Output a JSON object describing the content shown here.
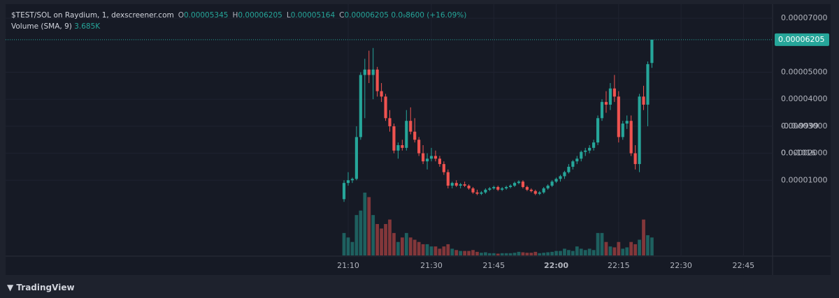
{
  "chart_data": {
    "type": "candlestick",
    "title": "$TEST/SOL on Raydium, 1, dexscreener.com",
    "legend_ohlc": [
      {
        "key": "O",
        "value": "0.00005345"
      },
      {
        "key": "H",
        "value": "0.00006205"
      },
      {
        "key": "L",
        "value": "0.00005164"
      },
      {
        "key": "C",
        "value": "0.00006205"
      }
    ],
    "legend_change": "0.0₉8600 (+16.09%)",
    "volume_title": "Volume (SMA, 9)",
    "volume_sma": "3.685K",
    "up_color": "#26a69a",
    "down_color": "#ef5350",
    "grid": true,
    "x": [
      "21:09",
      "21:10",
      "21:11",
      "21:12",
      "21:13",
      "21:14",
      "21:15",
      "21:16",
      "21:17",
      "21:18",
      "21:19",
      "21:20",
      "21:21",
      "21:22",
      "21:23",
      "21:24",
      "21:25",
      "21:26",
      "21:27",
      "21:28",
      "21:29",
      "21:30",
      "21:31",
      "21:32",
      "21:33",
      "21:34",
      "21:35",
      "21:36",
      "21:37",
      "21:38",
      "21:39",
      "21:40",
      "21:41",
      "21:42",
      "21:43",
      "21:44",
      "21:45",
      "21:46",
      "21:47",
      "21:48",
      "21:49",
      "21:50",
      "21:51",
      "21:52",
      "21:53",
      "21:54",
      "21:55",
      "21:56",
      "21:57",
      "21:58",
      "21:59",
      "22:00",
      "22:01",
      "22:02",
      "22:03",
      "22:04",
      "22:05",
      "22:06",
      "22:07",
      "22:08",
      "22:09",
      "22:10",
      "22:11",
      "22:12",
      "22:13",
      "22:14",
      "22:15",
      "22:16",
      "22:17",
      "22:18",
      "22:19",
      "22:20",
      "22:21",
      "22:22",
      "22:23"
    ],
    "open": [
      3e-06,
      9e-06,
      1e-05,
      1.05e-05,
      2.6e-05,
      4.9e-05,
      5.1e-05,
      4.9e-05,
      5.1e-05,
      4.3e-05,
      4.1e-05,
      3.3e-05,
      3e-05,
      2.1e-05,
      2.3e-05,
      2.2e-05,
      3.2e-05,
      2.8e-05,
      2.5e-05,
      2e-05,
      1.7e-05,
      1.8e-05,
      1.9e-05,
      1.8e-05,
      1.6e-05,
      1.3e-05,
      8e-06,
      9e-06,
      8e-06,
      8.5e-06,
      8e-06,
      7e-06,
      5.5e-06,
      5e-06,
      5.5e-06,
      6.5e-06,
      7e-06,
      7.5e-06,
      6.5e-06,
      7e-06,
      7.5e-06,
      8e-06,
      9e-06,
      9.5e-06,
      7.5e-06,
      6.5e-06,
      6e-06,
      5e-06,
      5.5e-06,
      7e-06,
      8e-06,
      9.5e-06,
      1.05e-05,
      1.15e-05,
      1.3e-05,
      1.5e-05,
      1.7e-05,
      1.8e-05,
      2.05e-05,
      2.1e-05,
      2.2e-05,
      2.4e-05,
      3.3e-05,
      3.9e-05,
      3.8e-05,
      4.4e-05,
      4.1e-05,
      2.6e-05,
      3.1e-05,
      3.2e-05,
      2e-05,
      1.6e-05,
      4.1e-05,
      3.8e-05,
      5.345e-05
    ],
    "high": [
      1e-05,
      1.3e-05,
      1.1e-05,
      3e-05,
      5e-05,
      5.5e-05,
      5.8e-05,
      5.9e-05,
      5.2e-05,
      4.6e-05,
      4.2e-05,
      3.6e-05,
      3.1e-05,
      2.4e-05,
      2.5e-05,
      3.6e-05,
      3.7e-05,
      3.3e-05,
      2.6e-05,
      2.3e-05,
      2e-05,
      2.2e-05,
      2.1e-05,
      1.9e-05,
      1.7e-05,
      1.4e-05,
      9.5e-06,
      1e-05,
      9e-06,
      9.5e-06,
      8.5e-06,
      7.5e-06,
      6.5e-06,
      6e-06,
      7e-06,
      7.5e-06,
      8e-06,
      8e-06,
      7.5e-06,
      8e-06,
      8.5e-06,
      9.5e-06,
      1e-05,
      1e-05,
      8e-06,
      7e-06,
      6.5e-06,
      6e-06,
      7.5e-06,
      8.5e-06,
      1e-05,
      1.1e-05,
      1.2e-05,
      1.35e-05,
      1.6e-05,
      1.75e-05,
      1.9e-05,
      2.1e-05,
      2.2e-05,
      2.3e-05,
      2.5e-05,
      3.4e-05,
      4e-05,
      4.3e-05,
      4.6e-05,
      4.9e-05,
      4.3e-05,
      3.2e-05,
      3.4e-05,
      3.4e-05,
      2.3e-05,
      4.2e-05,
      4.5e-05,
      5.4e-05,
      6.205e-05
    ],
    "low": [
      2e-06,
      8e-06,
      9e-06,
      1e-05,
      2.5e-05,
      3.3e-05,
      4.6e-05,
      4e-05,
      4.1e-05,
      3.9e-05,
      3.2e-05,
      2.8e-05,
      2e-05,
      1.8e-05,
      2.1e-05,
      2.1e-05,
      2.7e-05,
      2.4e-05,
      1.9e-05,
      1.6e-05,
      1.4e-05,
      1.7e-05,
      1.7e-05,
      1.5e-05,
      1.2e-05,
      7e-06,
      7e-06,
      7.5e-06,
      7e-06,
      7.5e-06,
      6.5e-06,
      5e-06,
      4.5e-06,
      4.5e-06,
      5e-06,
      6e-06,
      6.5e-06,
      6e-06,
      6e-06,
      6.5e-06,
      7e-06,
      7.5e-06,
      8.5e-06,
      7e-06,
      6e-06,
      5.5e-06,
      4.5e-06,
      4.5e-06,
      5e-06,
      6.5e-06,
      7.5e-06,
      9e-06,
      9.5e-06,
      1.05e-05,
      1.25e-05,
      1.4e-05,
      1.6e-05,
      1.7e-05,
      1.9e-05,
      2e-05,
      2.1e-05,
      2.3e-05,
      3.2e-05,
      3.5e-05,
      3.6e-05,
      3.9e-05,
      2.4e-05,
      2.5e-05,
      2.9e-05,
      1.9e-05,
      1.4e-05,
      1.3e-05,
      3.6e-05,
      3e-05,
      5.164e-05
    ],
    "close": [
      9e-06,
      1e-05,
      1.05e-05,
      2.6e-05,
      4.9e-05,
      5.1e-05,
      4.9e-05,
      5.1e-05,
      4.3e-05,
      4.1e-05,
      3.3e-05,
      3e-05,
      2.1e-05,
      2.3e-05,
      2.2e-05,
      3.2e-05,
      2.8e-05,
      2.5e-05,
      2e-05,
      1.7e-05,
      1.8e-05,
      1.9e-05,
      1.8e-05,
      1.6e-05,
      1.3e-05,
      8e-06,
      9e-06,
      8e-06,
      8.5e-06,
      8e-06,
      7e-06,
      5.5e-06,
      5e-06,
      5.5e-06,
      6.5e-06,
      7e-06,
      7.5e-06,
      6.5e-06,
      7e-06,
      7.5e-06,
      8e-06,
      9e-06,
      9.5e-06,
      7.5e-06,
      6.5e-06,
      6e-06,
      5e-06,
      5.5e-06,
      7e-06,
      8e-06,
      9.5e-06,
      1.05e-05,
      1.15e-05,
      1.3e-05,
      1.5e-05,
      1.7e-05,
      1.8e-05,
      2.05e-05,
      2.1e-05,
      2.2e-05,
      2.4e-05,
      3.3e-05,
      3.9e-05,
      3.8e-05,
      4.4e-05,
      4.1e-05,
      2.6e-05,
      3.1e-05,
      3.2e-05,
      2e-05,
      1.6e-05,
      4.1e-05,
      3.8e-05,
      5.3e-05,
      6.205e-05
    ],
    "volume": [
      5,
      4,
      3,
      9,
      10,
      14,
      13,
      9,
      7,
      6,
      7,
      8,
      5,
      3,
      4,
      5,
      4,
      3.5,
      3,
      2.5,
      2.5,
      2,
      2,
      1.5,
      2,
      2.5,
      1.5,
      1.2,
      1,
      1,
      1,
      1.2,
      0.8,
      0.6,
      0.7,
      0.5,
      0.5,
      0.4,
      0.5,
      0.5,
      0.5,
      0.6,
      0.8,
      0.7,
      0.6,
      0.6,
      0.8,
      0.5,
      0.6,
      0.7,
      0.8,
      1,
      1,
      1.5,
      1.2,
      1,
      2,
      1.5,
      1.2,
      1.5,
      1.2,
      5,
      5,
      3,
      2,
      1.8,
      3,
      1.5,
      1.8,
      3,
      2.5,
      3.5,
      8,
      4.5,
      4
    ],
    "xlim": [
      "19:48",
      "22:52"
    ],
    "xticks": [
      "21:10",
      "21:30",
      "21:45",
      "22:00",
      "22:15",
      "22:30",
      "22:45"
    ],
    "ylim": [
      -1.81e-05,
      7.47e-05
    ],
    "yticks": [
      {
        "value": 7e-05,
        "label": "0.00007000"
      },
      {
        "value": 5e-05,
        "label": "0.00005000"
      },
      {
        "value": 4e-05,
        "label": "0.00004000"
      },
      {
        "value": 3e-05,
        "label": "0.00003000"
      },
      {
        "value": 2e-05,
        "label": "0.00002000"
      },
      {
        "value": 1e-05,
        "label": "0.00001000"
      }
    ],
    "extra_axis_labels": [
      "0.0₉1016",
      "-0.0₉9999"
    ],
    "last_price": {
      "value": 6.205e-05,
      "label": "0.00006205"
    },
    "brand": "TradingView"
  }
}
